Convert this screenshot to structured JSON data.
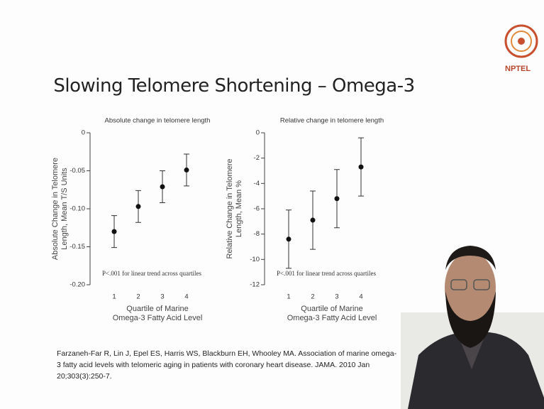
{
  "title": "Slowing Telomere Shortening – Omega-3",
  "logo": "NPTEL",
  "citation": "Farzaneh-Far R, Lin J, Epel ES, Harris WS, Blackburn EH, Whooley MA.  Association of marine omega-3 fatty acid levels with telomeric aging in patients with coronary heart disease. JAMA. 2010 Jan 20;303(3):250-7.",
  "chart_data": [
    {
      "type": "errorbar",
      "title": "Absolute change in telomere length",
      "ylabel": "Absolute Change in Telomere Length, Mean T/S Units",
      "xlabel": "Quartile of Marine Omega-3 Fatty Acid Level",
      "annotation": "P<.001 for linear trend across quartiles",
      "x": [
        1,
        2,
        3,
        4
      ],
      "values": [
        -0.13,
        -0.097,
        -0.071,
        -0.049
      ],
      "errors": [
        0.021,
        0.021,
        0.021,
        0.021
      ],
      "color": "#111111",
      "xlim": [
        0,
        5
      ],
      "xticks": [
        1,
        2,
        3,
        4
      ],
      "ylim": [
        -0.2,
        0
      ],
      "yticks": [
        0,
        -0.05,
        {
          "value": -0.1,
          "label": "-0.10"
        },
        -0.15,
        {
          "value": -0.2,
          "label": "-0.20"
        }
      ]
    },
    {
      "type": "errorbar",
      "title": "Relative change in telomere length",
      "ylabel": "Relative Change in Telomere Length, Mean %",
      "xlabel": "Quartile of Marine Omega-3 Fatty Acid Level",
      "annotation": "P<.001 for linear trend across quartiles",
      "x": [
        1,
        2,
        3,
        4
      ],
      "values": [
        -8.4,
        -6.9,
        -5.2,
        -2.7
      ],
      "errors": [
        2.3,
        2.3,
        2.3,
        2.3
      ],
      "color": "#111111",
      "xlim": [
        0,
        5
      ],
      "xticks": [
        1,
        2,
        3,
        4
      ],
      "ylim": [
        -12,
        0
      ],
      "yticks": [
        0,
        -2,
        -4,
        -6,
        -8,
        -10,
        -12
      ]
    }
  ]
}
